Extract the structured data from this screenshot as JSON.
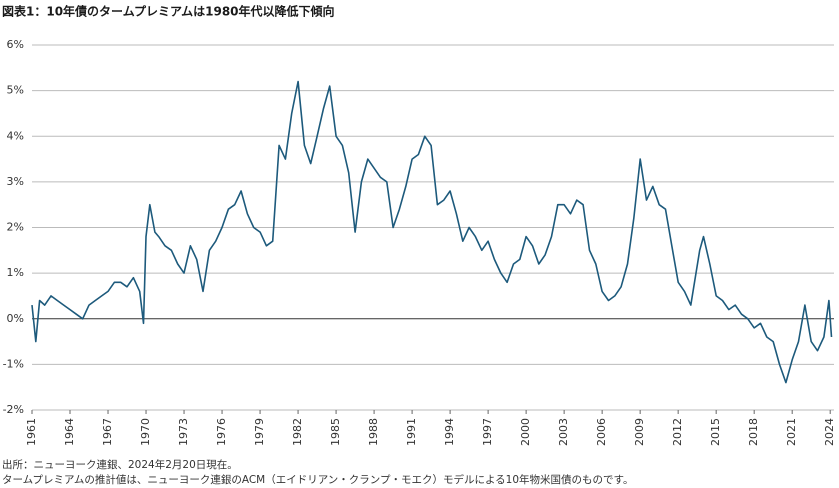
{
  "chart_data": {
    "type": "line",
    "title": "図表1：10年債のタームプレミアムは1980年代以降低下傾向",
    "notes": [
      "出所：ニューヨーク連銀、2024年2月20日現在。",
      "タームプレミアムの推計値は、ニューヨーク連銀のACM（エイドリアン・クランプ・モエク）モデルによる10年物米国債のものです。"
    ],
    "color": "#1d5a7c",
    "x": [
      1961,
      1961.3,
      1961.6,
      1962,
      1962.5,
      1963,
      1963.5,
      1964,
      1964.5,
      1965,
      1965.5,
      1966,
      1966.5,
      1967,
      1967.5,
      1968,
      1968.5,
      1969,
      1969.5,
      1969.8,
      1970,
      1970.3,
      1970.7,
      1971,
      1971.5,
      1972,
      1972.5,
      1973,
      1973.5,
      1974,
      1974.5,
      1975,
      1975.5,
      1976,
      1976.5,
      1977,
      1977.5,
      1978,
      1978.5,
      1979,
      1979.5,
      1980,
      1980.5,
      1981,
      1981.5,
      1982,
      1982.5,
      1983,
      1983.5,
      1984,
      1984.5,
      1985,
      1985.5,
      1986,
      1986.5,
      1987,
      1987.5,
      1988,
      1988.5,
      1989,
      1989.5,
      1990,
      1990.5,
      1991,
      1991.5,
      1992,
      1992.5,
      1993,
      1993.5,
      1994,
      1994.5,
      1995,
      1995.5,
      1996,
      1996.5,
      1997,
      1997.5,
      1998,
      1998.5,
      1999,
      1999.5,
      2000,
      2000.5,
      2001,
      2001.5,
      2002,
      2002.5,
      2003,
      2003.5,
      2004,
      2004.5,
      2005,
      2005.5,
      2006,
      2006.5,
      2007,
      2007.5,
      2008,
      2008.5,
      2009,
      2009.5,
      2010,
      2010.5,
      2011,
      2011.5,
      2012,
      2012.5,
      2013,
      2013.7,
      2014,
      2014.5,
      2015,
      2015.5,
      2016,
      2016.5,
      2017,
      2017.5,
      2018,
      2018.5,
      2019,
      2019.5,
      2020,
      2020.5,
      2021,
      2021.5,
      2022,
      2022.5,
      2023,
      2023.5,
      2023.9,
      2024.1
    ],
    "values": [
      0.3,
      -0.5,
      0.4,
      0.3,
      0.5,
      0.4,
      0.3,
      0.2,
      0.1,
      0.0,
      0.3,
      0.4,
      0.5,
      0.6,
      0.8,
      0.8,
      0.7,
      0.9,
      0.6,
      -0.1,
      1.8,
      2.5,
      1.9,
      1.8,
      1.6,
      1.5,
      1.2,
      1.0,
      1.6,
      1.3,
      0.6,
      1.5,
      1.7,
      2.0,
      2.4,
      2.5,
      2.8,
      2.3,
      2.0,
      1.9,
      1.6,
      1.7,
      3.8,
      3.5,
      4.5,
      5.2,
      3.8,
      3.4,
      4.0,
      4.6,
      5.1,
      4.0,
      3.8,
      3.2,
      1.9,
      3.0,
      3.5,
      3.3,
      3.1,
      3.0,
      2.0,
      2.4,
      2.9,
      3.5,
      3.6,
      4.0,
      3.8,
      2.5,
      2.6,
      2.8,
      2.3,
      1.7,
      2.0,
      1.8,
      1.5,
      1.7,
      1.3,
      1.0,
      0.8,
      1.2,
      1.3,
      1.8,
      1.6,
      1.2,
      1.4,
      1.8,
      2.5,
      2.5,
      2.3,
      2.6,
      2.5,
      1.5,
      1.2,
      0.6,
      0.4,
      0.5,
      0.7,
      1.2,
      2.2,
      3.5,
      2.6,
      2.9,
      2.5,
      2.4,
      1.6,
      0.8,
      0.6,
      0.3,
      1.5,
      1.8,
      1.2,
      0.5,
      0.4,
      0.2,
      0.3,
      0.1,
      0.0,
      -0.2,
      -0.1,
      -0.4,
      -0.5,
      -1.0,
      -1.4,
      -0.9,
      -0.5,
      0.3,
      -0.5,
      -0.7,
      -0.4,
      0.4,
      -0.4
    ],
    "xlim": [
      1961,
      2024.3
    ],
    "xticks": [
      1961,
      1964,
      1967,
      1970,
      1973,
      1976,
      1979,
      1982,
      1985,
      1988,
      1991,
      1994,
      1997,
      2000,
      2003,
      2006,
      2009,
      2012,
      2015,
      2018,
      2021,
      2024
    ],
    "ylim": [
      -2,
      6
    ],
    "yticks": [
      {
        "value": -2,
        "label": "-2%"
      },
      {
        "value": -1,
        "label": "-1%"
      },
      {
        "value": 0,
        "label": "0%"
      },
      {
        "value": 1,
        "label": "1%"
      },
      {
        "value": 2,
        "label": "2%"
      },
      {
        "value": 3,
        "label": "3%"
      },
      {
        "value": 4,
        "label": "4%"
      },
      {
        "value": 5,
        "label": "5%"
      },
      {
        "value": 6,
        "label": "6%"
      }
    ],
    "grid": true
  }
}
